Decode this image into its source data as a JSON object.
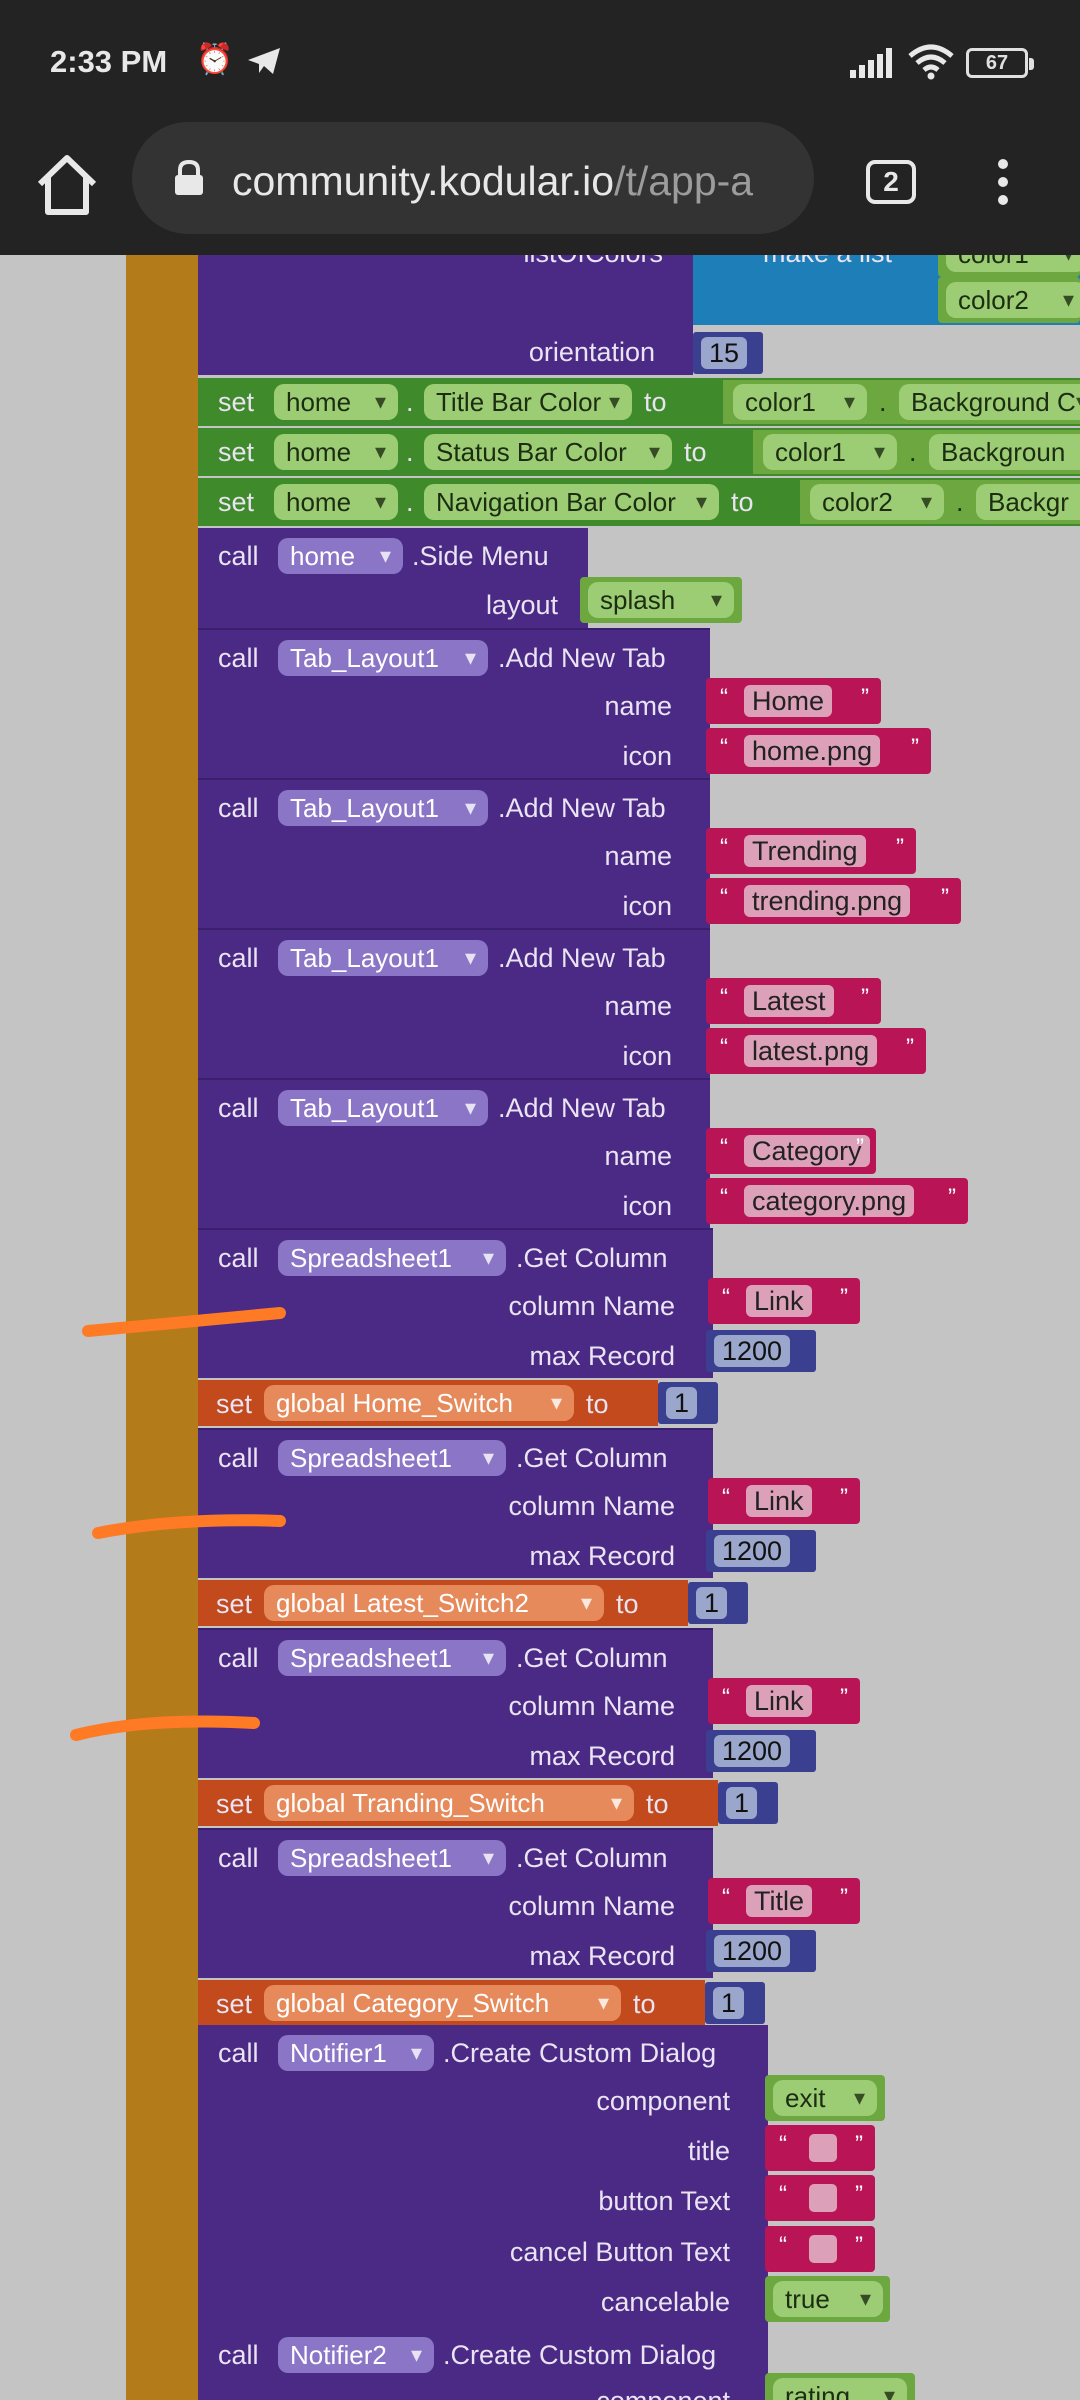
{
  "status_bar": {
    "time": "2:33 PM",
    "battery": "67",
    "icons": [
      "alarm-icon",
      "telegram-icon",
      "signal-icon",
      "wifi-icon",
      "battery-icon"
    ]
  },
  "browser": {
    "url_host": "community.kodular.io",
    "url_path": "/t/app-a",
    "tab_count": "2"
  },
  "top_partial": {
    "list_label": "listOfColors",
    "make_list": "make a list",
    "color1": "color1",
    "color2": "color2",
    "orientation_label": "orientation",
    "orientation_value": "15"
  },
  "set_blocks": [
    {
      "set": "set",
      "component": "home",
      "dot": ".",
      "property": "Title Bar Color",
      "to": "to",
      "color": "color1",
      "dot2": ".",
      "prop2": "Background C"
    },
    {
      "set": "set",
      "component": "home",
      "dot": ".",
      "property": "Status Bar Color",
      "to": "to",
      "color": "color1",
      "dot2": ".",
      "prop2": "Backgroun"
    },
    {
      "set": "set",
      "component": "home",
      "dot": ".",
      "property": "Navigation Bar Color",
      "to": "to",
      "color": "color2",
      "dot2": ".",
      "prop2": "Backgr"
    }
  ],
  "side_menu": {
    "call": "call",
    "component": "home",
    "method": ".Side Menu",
    "param": "layout",
    "value": "splash"
  },
  "tabs": [
    {
      "call": "call",
      "component": "Tab_Layout1",
      "method": ".Add New Tab",
      "name_label": "name",
      "name": "Home",
      "icon_label": "icon",
      "icon": "home.png"
    },
    {
      "call": "call",
      "component": "Tab_Layout1",
      "method": ".Add New Tab",
      "name_label": "name",
      "name": "Trending",
      "icon_label": "icon",
      "icon": "trending.png"
    },
    {
      "call": "call",
      "component": "Tab_Layout1",
      "method": ".Add New Tab",
      "name_label": "name",
      "name": "Latest",
      "icon_label": "icon",
      "icon": "latest.png"
    },
    {
      "call": "call",
      "component": "Tab_Layout1",
      "method": ".Add New Tab",
      "name_label": "name",
      "name": "Category",
      "icon_label": "icon",
      "icon": "category.png"
    }
  ],
  "get_columns": [
    {
      "call": "call",
      "component": "Spreadsheet1",
      "method": ".Get Column",
      "col_label": "column Name",
      "col": "Link",
      "max_label": "max Record",
      "max": "1200",
      "set": "set",
      "var": "global Home_Switch",
      "to": "to",
      "var_val": "1"
    },
    {
      "call": "call",
      "component": "Spreadsheet1",
      "method": ".Get Column",
      "col_label": "column Name",
      "col": "Link",
      "max_label": "max Record",
      "max": "1200",
      "set": "set",
      "var": "global Latest_Switch2",
      "to": "to",
      "var_val": "1"
    },
    {
      "call": "call",
      "component": "Spreadsheet1",
      "method": ".Get Column",
      "col_label": "column Name",
      "col": "Link",
      "max_label": "max Record",
      "max": "1200",
      "set": "set",
      "var": "global Tranding_Switch",
      "to": "to",
      "var_val": "1"
    },
    {
      "call": "call",
      "component": "Spreadsheet1",
      "method": ".Get Column",
      "col_label": "column Name",
      "col": "Title",
      "max_label": "max Record",
      "max": "1200",
      "set": "set",
      "var": "global Category_Switch",
      "to": "to",
      "var_val": "1"
    }
  ],
  "dialog1": {
    "call": "call",
    "component": "Notifier1",
    "method": ".Create Custom Dialog",
    "component_label": "component",
    "component_value": "exit",
    "title_label": "title",
    "button_label": "button Text",
    "cancel_label": "cancel Button Text",
    "cancelable_label": "cancelable",
    "cancelable_value": "true"
  },
  "dialog2": {
    "call": "call",
    "component": "Notifier2",
    "method": ".Create Custom Dialog",
    "component_label": "component",
    "component_value": "rating"
  },
  "colors": {
    "purple": "#4b2a86",
    "green": "#3f8a2a",
    "orange": "#c24a1c",
    "string": "#b81456",
    "spine": "#b37b19",
    "scribble": "#ff7a24"
  }
}
